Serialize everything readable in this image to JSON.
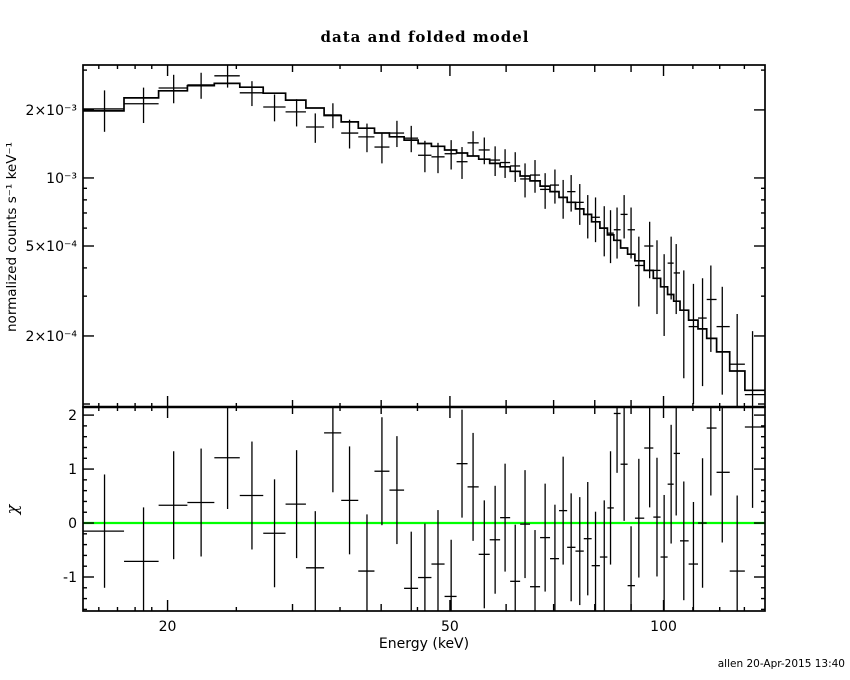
{
  "title": "data and folded model",
  "footer": "allen 20-Apr-2015 13:40",
  "colors": {
    "foreground": "#000000",
    "background": "#ffffff",
    "zero_line": "#00ff00"
  },
  "chart_data": [
    {
      "id": "spectrum",
      "type": "scatter",
      "title": "data and folded model",
      "xlabel": "Energy (keV)",
      "ylabel": "normalized counts s⁻¹ keV⁻¹",
      "xscale": "log",
      "yscale": "log",
      "xlim": [
        15.2,
        139
      ],
      "ylim": [
        9.7e-05,
        0.00316
      ],
      "grid": false,
      "legend": "none",
      "xticks": [
        {
          "v": 16,
          "t": "s"
        },
        {
          "v": 17,
          "t": "s"
        },
        {
          "v": 18,
          "t": "s"
        },
        {
          "v": 19,
          "t": "s"
        },
        {
          "v": 20,
          "t": "M",
          "label": "20"
        },
        {
          "v": 25,
          "t": "s"
        },
        {
          "v": 30,
          "t": "m"
        },
        {
          "v": 35,
          "t": "s"
        },
        {
          "v": 40,
          "t": "m"
        },
        {
          "v": 45,
          "t": "s"
        },
        {
          "v": 50,
          "t": "M",
          "label": "50"
        },
        {
          "v": 60,
          "t": "m"
        },
        {
          "v": 70,
          "t": "m"
        },
        {
          "v": 80,
          "t": "m"
        },
        {
          "v": 90,
          "t": "m"
        },
        {
          "v": 100,
          "t": "M",
          "label": "100"
        },
        {
          "v": 110,
          "t": "s"
        },
        {
          "v": 120,
          "t": "s"
        },
        {
          "v": 130,
          "t": "s"
        }
      ],
      "yticks": [
        {
          "v": 0.003,
          "t": "s"
        },
        {
          "v": 0.002,
          "t": "M",
          "label": "2×10⁻³"
        },
        {
          "v": 0.001,
          "t": "M",
          "label": "10⁻³"
        },
        {
          "v": 0.0009,
          "t": "s"
        },
        {
          "v": 0.0008,
          "t": "s"
        },
        {
          "v": 0.0007,
          "t": "s"
        },
        {
          "v": 0.0006,
          "t": "s"
        },
        {
          "v": 0.0005,
          "t": "M",
          "label": "5×10⁻⁴"
        },
        {
          "v": 0.0004,
          "t": "s"
        },
        {
          "v": 0.0003,
          "t": "s"
        },
        {
          "v": 0.0002,
          "t": "M",
          "label": "2×10⁻⁴"
        },
        {
          "v": 0.0001,
          "t": "m"
        }
      ],
      "energy_kev": [
        16.3,
        18.5,
        20.4,
        22.3,
        24.3,
        26.3,
        28.3,
        30.4,
        32.3,
        34.2,
        36.1,
        38.2,
        40.1,
        42.1,
        44.1,
        46.1,
        48.1,
        50.2,
        52.0,
        53.9,
        55.9,
        57.9,
        59.8,
        61.8,
        63.8,
        65.9,
        68.1,
        70.3,
        72.2,
        74.1,
        76.2,
        78.2,
        80.2,
        82.5,
        84.2,
        86.0,
        88.0,
        90.0,
        92.3,
        95.6,
        97.9,
        100.2,
        102.5,
        104.2,
        106.8,
        110.2,
        113.5,
        116.6,
        121.0,
        127.0,
        133.5
      ],
      "rate": [
        0.00202,
        0.00213,
        0.0025,
        0.00258,
        0.00283,
        0.00238,
        0.00206,
        0.00196,
        0.00168,
        0.0019,
        0.00158,
        0.00152,
        0.00137,
        0.00158,
        0.0015,
        0.00126,
        0.00124,
        0.00128,
        0.00118,
        0.00143,
        0.00133,
        0.0012,
        0.00117,
        0.00113,
        0.00099,
        0.00103,
        0.00089,
        0.00093,
        0.00082,
        0.00087,
        0.00078,
        0.00069,
        0.00067,
        0.0006,
        0.00057,
        0.00059,
        0.00069,
        0.00059,
        0.00041,
        0.0005,
        0.00039,
        0.00033,
        0.00042,
        0.00038,
        0.00026,
        0.00022,
        0.00024,
        0.00029,
        0.00022,
        0.00015,
        0.00011
      ],
      "rate_err": [
        0.00042,
        0.00038,
        0.00036,
        0.00034,
        0.00032,
        0.0003,
        0.00028,
        0.00027,
        0.00025,
        0.00024,
        0.00023,
        0.00022,
        0.00021,
        0.00021,
        0.0002,
        0.0002,
        0.00019,
        0.00019,
        0.00019,
        0.00018,
        0.00018,
        0.00018,
        0.00017,
        0.00017,
        0.00017,
        0.00017,
        0.00016,
        0.00016,
        0.00016,
        0.00016,
        0.00016,
        0.00015,
        0.00015,
        0.00015,
        0.00015,
        0.00015,
        0.00015,
        0.00015,
        0.00014,
        0.00014,
        0.00014,
        0.00013,
        0.00013,
        0.00013,
        0.00013,
        0.00012,
        0.00012,
        0.00012,
        0.00011,
        0.0001,
        0.0001
      ],
      "folded_model": [
        0.00198,
        0.00226,
        0.00243,
        0.00256,
        0.00262,
        0.00252,
        0.00237,
        0.00221,
        0.00204,
        0.00189,
        0.00177,
        0.00166,
        0.00158,
        0.00152,
        0.00147,
        0.00142,
        0.00138,
        0.00133,
        0.00129,
        0.00125,
        0.00121,
        0.00116,
        0.00112,
        0.00107,
        0.00102,
        0.00097,
        0.00092,
        0.00087,
        0.00082,
        0.00078,
        0.00073,
        0.00069,
        0.00064,
        0.0006,
        0.00056,
        0.00053,
        0.00049,
        0.00046,
        0.00043,
        0.00039,
        0.00036,
        0.00033,
        0.000305,
        0.000285,
        0.00026,
        0.000235,
        0.000215,
        0.000195,
        0.00017,
        0.00014,
        0.000115
      ]
    },
    {
      "id": "residuals",
      "type": "scatter",
      "xlabel": "Energy (keV)",
      "ylabel": "χ",
      "xscale": "log",
      "yscale": "linear",
      "ylim": [
        -1.63,
        2.15
      ],
      "grid": false,
      "yticks": [
        {
          "v": 2,
          "t": "M",
          "label": "2"
        },
        {
          "v": 1,
          "t": "M",
          "label": "1"
        },
        {
          "v": 0,
          "t": "M",
          "label": "0"
        },
        {
          "v": -1,
          "t": "M",
          "label": "-1"
        }
      ],
      "ytick_minor_step": 0.2,
      "zero_line": 0,
      "chi": [
        -0.15,
        -0.71,
        0.33,
        0.38,
        1.21,
        0.51,
        -0.19,
        0.35,
        -0.83,
        1.67,
        0.42,
        -0.89,
        0.96,
        0.61,
        -1.21,
        -1.01,
        -0.76,
        -1.36,
        1.1,
        0.67,
        -0.58,
        -0.31,
        0.1,
        -1.08,
        -0.02,
        -1.18,
        -0.27,
        -0.66,
        0.23,
        -0.45,
        -0.52,
        -0.29,
        -0.79,
        -0.63,
        0.28,
        2.03,
        1.09,
        -1.16,
        0.09,
        1.39,
        0.11,
        -0.63,
        0.72,
        1.29,
        -0.33,
        -0.76,
        0.0,
        1.76,
        0.94,
        -0.89,
        1.78
      ],
      "chi_err": [
        1.05,
        1.0,
        1.0,
        1.0,
        0.95,
        1.0,
        1.0,
        1.0,
        1.05,
        1.1,
        1.0,
        1.05,
        1.0,
        1.0,
        1.05,
        1.0,
        1.0,
        1.05,
        1.0,
        1.0,
        1.0,
        1.0,
        1.0,
        1.05,
        1.0,
        1.05,
        1.0,
        1.0,
        1.0,
        1.0,
        1.0,
        1.05,
        1.0,
        1.05,
        1.05,
        1.1,
        1.05,
        1.1,
        1.1,
        1.1,
        1.1,
        1.15,
        1.1,
        1.15,
        1.1,
        1.15,
        1.2,
        1.25,
        1.3,
        1.4,
        1.5
      ]
    }
  ]
}
